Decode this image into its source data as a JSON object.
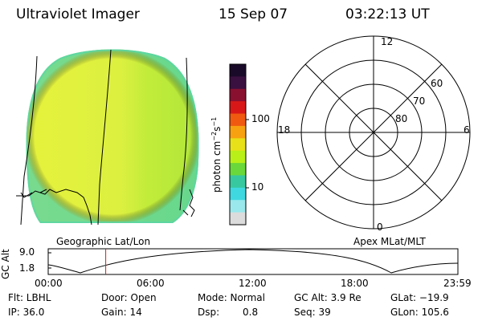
{
  "header": {
    "instrument": "Ultraviolet Imager",
    "date": "15 Sep 07",
    "time": "03:22:13 UT"
  },
  "colorbar": {
    "unit_label": "photon cm",
    "unit_exp1": "−2",
    "unit_mid": "s",
    "unit_exp2": "−1",
    "tick_100": "100",
    "tick_10": "10",
    "colors": [
      "#1a0a2a",
      "#3a1040",
      "#8a1030",
      "#d81818",
      "#f05a10",
      "#f7a010",
      "#e8e018",
      "#b8f018",
      "#6ad83a",
      "#38c8a0",
      "#40d8e0",
      "#9ae8ec",
      "#dcdcdc"
    ]
  },
  "left_panel": {
    "caption": "Geographic Lat/Lon",
    "disc_color_main": "#dcf040",
    "disc_color_right": "#b8ea38",
    "rim_color": "#58d8a8"
  },
  "polar": {
    "caption": "Apex MLat/MLT",
    "mlt_top": "12",
    "mlt_left": "18",
    "mlt_right": "6",
    "mlt_bottom": "0",
    "lat_60": "60",
    "lat_70": "70",
    "lat_80": "80"
  },
  "alt_plot": {
    "ylabel": "GC Alt",
    "ytick_top": "9.0",
    "ytick_bottom": "1.8",
    "xticks": [
      "00:00",
      "06:00",
      "12:00",
      "18:00",
      "23:59"
    ],
    "marker_color": "#cc2020",
    "marker_time_hours": 3.37
  },
  "footer": {
    "flt": "Flt: LBHL",
    "door": "Door: Open",
    "mode": "Mode: Normal",
    "gc_alt": "GC Alt: 3.9 Re",
    "glat": "GLat: −19.9",
    "ip": "IP: 36.0",
    "gain": "Gain: 14",
    "dsp_label": "Dsp:",
    "dsp_value": "0.8",
    "seq": "Seq: 39",
    "glon": "GLon: 105.6"
  }
}
